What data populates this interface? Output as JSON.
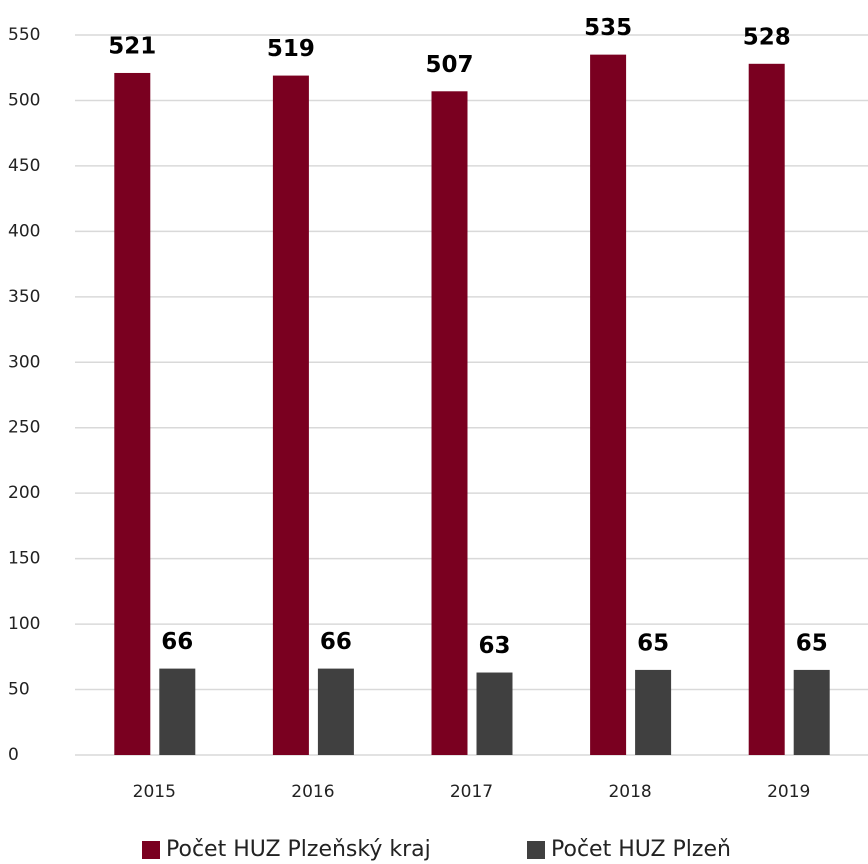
{
  "chart_data": {
    "type": "bar",
    "categories": [
      "2015",
      "2016",
      "2017",
      "2018",
      "2019"
    ],
    "series": [
      {
        "name": "Počet HUZ Plzeňský kraj",
        "color": "#7a0020",
        "values": [
          521,
          519,
          507,
          535,
          528
        ]
      },
      {
        "name": "Počet HUZ Plzeň",
        "color": "#404040",
        "values": [
          66,
          66,
          63,
          65,
          65
        ]
      }
    ],
    "ylim": [
      0,
      550
    ],
    "yticks": [
      0,
      50,
      100,
      150,
      200,
      250,
      300,
      350,
      400,
      450,
      500,
      550
    ],
    "grid": true,
    "legend": "bottom"
  }
}
